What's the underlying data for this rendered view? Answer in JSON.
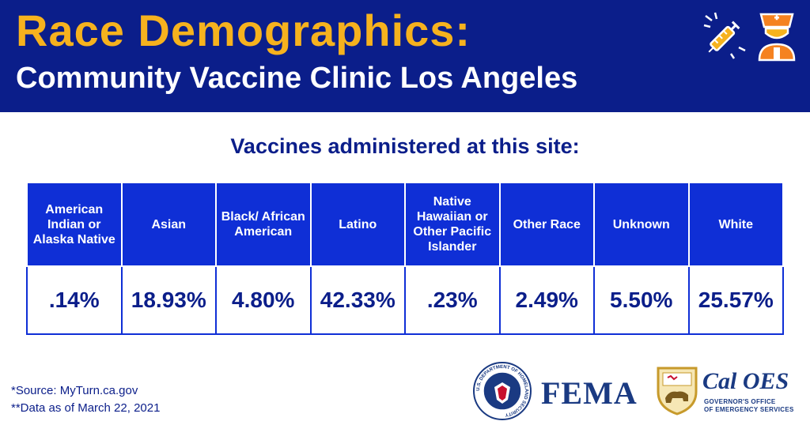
{
  "header": {
    "title": "Race Demographics:",
    "subtitle": "Community Vaccine Clinic Los Angeles",
    "icons": [
      "syringe-icon",
      "nurse-icon"
    ]
  },
  "section_title": "Vaccines administered at this site:",
  "table": {
    "columns": [
      {
        "label": "American Indian or Alaska Native",
        "value": ".14%"
      },
      {
        "label": "Asian",
        "value": "18.93%"
      },
      {
        "label": "Black/ African American",
        "value": "4.80%"
      },
      {
        "label": "Latino",
        "value": "42.33%"
      },
      {
        "label": "Native Hawaiian or Other Pacific Islander",
        "value": ".23%"
      },
      {
        "label": "Other Race",
        "value": "2.49%"
      },
      {
        "label": "Unknown",
        "value": "5.50%"
      },
      {
        "label": "White",
        "value": "25.57%"
      }
    ]
  },
  "footer": {
    "source": "*Source: MyTurn.ca.gov",
    "data_date": "**Data as of March 22, 2021"
  },
  "logos": {
    "dhs_seal_text": "U.S. DEPARTMENT OF HOMELAND SECURITY",
    "fema": "FEMA",
    "caloes_name": "Cal OES",
    "caloes_tagline_1": "GOVERNOR'S OFFICE",
    "caloes_tagline_2": "OF EMERGENCY SERVICES"
  },
  "colors": {
    "header_bg": "#0b1e8a",
    "title": "#f6b21e",
    "table_header_bg": "#0f2fd6",
    "value_text": "#0b1e8a"
  }
}
